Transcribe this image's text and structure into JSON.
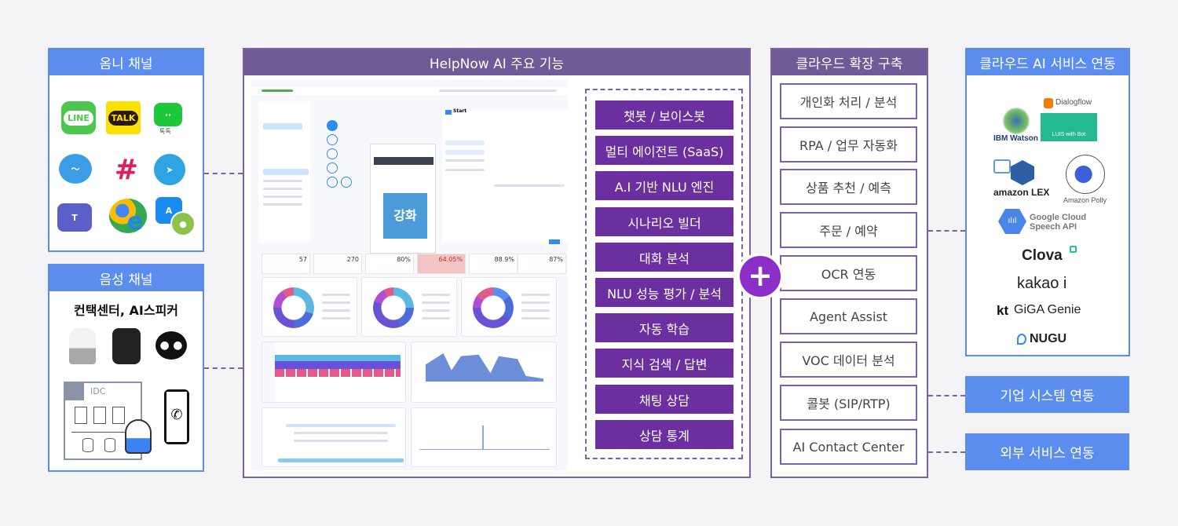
{
  "omni": {
    "title": "옴니 채널",
    "icons": [
      {
        "name": "line-icon",
        "label": "LINE",
        "color": "#4cc64f"
      },
      {
        "name": "kakaotalk-icon",
        "label": "TALK",
        "color": "#fae100"
      },
      {
        "name": "naver-talktalk-icon",
        "label": "톡톡",
        "color": "#1fc73a"
      },
      {
        "name": "messenger-icon",
        "label": "",
        "color": "#3b9de8"
      },
      {
        "name": "slack-icon",
        "label": "",
        "color": "#e01e5a"
      },
      {
        "name": "telegram-icon",
        "label": "",
        "color": "#2ca5e0"
      },
      {
        "name": "teams-icon",
        "label": "T",
        "color": "#5b5fc7"
      },
      {
        "name": "chrome-ie-icon",
        "label": "e",
        "color": "#1e88e5"
      },
      {
        "name": "appstore-android-icon",
        "label": "A",
        "color": "#1a8cf0"
      }
    ]
  },
  "voice": {
    "title": "음성 채널",
    "subtitle": "컨택센터, AI스피커",
    "idc_label": "IDC"
  },
  "helpnow": {
    "title": "HelpNow AI 주요 기능",
    "features": [
      "챗봇 / 보이스봇",
      "멀티 에이전트 (SaaS)",
      "A.I 기반 NLU 엔진",
      "시나리오 빌더",
      "대화 분석",
      "NLU 성능 평가 / 분석",
      "자동 학습",
      "지식 검색 / 답변",
      "채팅 상담",
      "상담 통계"
    ],
    "mock": {
      "start_title": "Start",
      "phone_banner": "강화",
      "kpis": [
        "57",
        "270",
        "80%",
        "64.05%",
        "88.9%",
        "87%"
      ]
    }
  },
  "plus_icon": "+",
  "cloud_build": {
    "title": "클라우드 확장 구축",
    "items": [
      "개인화 처리 / 분석",
      "RPA / 업무 자동화",
      "상품 추천 / 예측",
      "주문 / 예약",
      "OCR 연동",
      "Agent Assist",
      "VOC 데이터 분석",
      "콜봇 (SIP/RTP)",
      "AI Contact Center"
    ]
  },
  "cloud_ai": {
    "title": "클라우드 AI 서비스 연동",
    "logos": [
      "IBM Watson",
      "Dialogflow",
      "LUIS with Bot",
      "amazon LEX",
      "Amazon Polly",
      "Google Cloud",
      "Speech API",
      "Clova",
      "kakao i",
      "kt",
      "GiGA Genie",
      "NUGU"
    ]
  },
  "enterprise": {
    "label": "기업 시스템 연동"
  },
  "external": {
    "label": "외부 서비스 연동"
  },
  "colors": {
    "blue": "#5b8def",
    "purple_header": "#6e5a96",
    "feature": "#6b2fa0"
  }
}
